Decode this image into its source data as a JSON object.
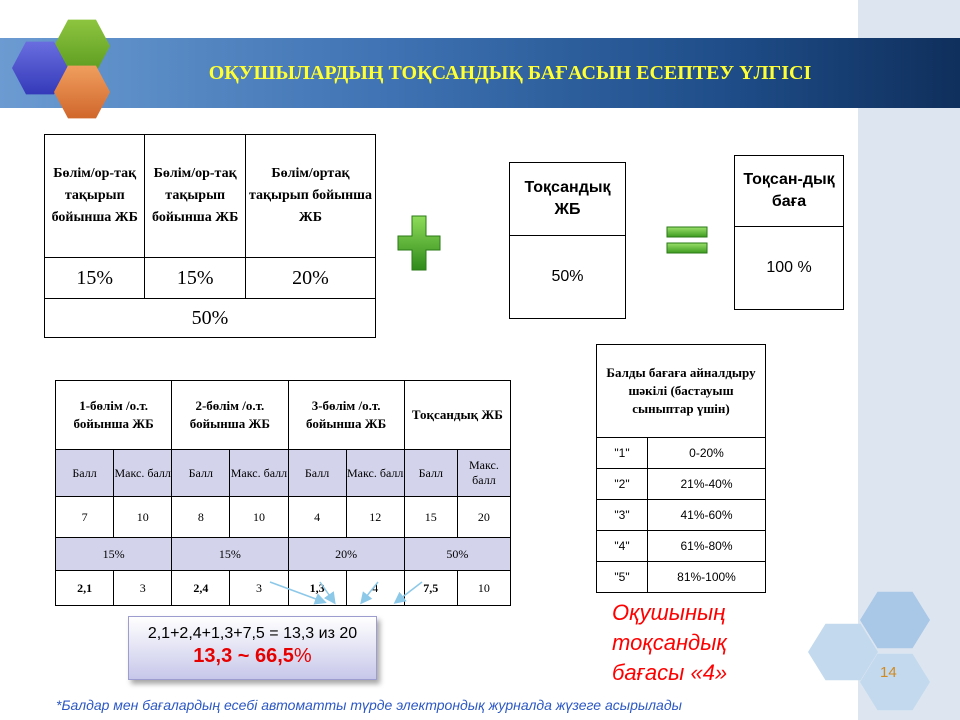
{
  "title": "ОҚУШЫЛАРДЫҢ ТОҚСАНДЫҚ БАҒАСЫН ЕСЕПТЕУ ҮЛГІСІ",
  "table1": {
    "headers": [
      "Бөлім/ор-тақ тақырып бойынша ЖБ",
      "Бөлім/ор-тақ тақырып бойынша ЖБ",
      "Бөлім/ортақ тақырып бойынша ЖБ"
    ],
    "percents": [
      "15%",
      "15%",
      "20%"
    ],
    "total": "50%"
  },
  "table2": {
    "header": "Тоқсандық ЖБ",
    "value": "50%"
  },
  "table3": {
    "header": "Тоқсан-дық баға",
    "value": "100 %"
  },
  "grade_table": {
    "headers": [
      "1-бөлім /о.т. бойынша ЖБ",
      "2-бөлім /о.т. бойынша ЖБ",
      "3-бөлім /о.т. бойынша ЖБ",
      "Тоқсандық ЖБ"
    ],
    "sub_ball": "Балл",
    "sub_max": "Макс. балл",
    "scores": [
      "7",
      "10",
      "8",
      "10",
      "4",
      "12",
      "15",
      "20"
    ],
    "weights": [
      "15%",
      "15%",
      "20%",
      "50%"
    ],
    "weighted": [
      "2,1",
      "3",
      "2,4",
      "3",
      "1,3",
      "4",
      "7,5",
      "10"
    ]
  },
  "scale_table": {
    "header": "Балды бағаға айналдыру шәкілі (бастауыш сыныптар үшін)",
    "rows": [
      {
        "grade": "\"1\"",
        "range": "0-20%"
      },
      {
        "grade": "\"2\"",
        "range": "21%-40%"
      },
      {
        "grade": "\"3\"",
        "range": "41%-60%"
      },
      {
        "grade": "\"4\"",
        "range": "61%-80%"
      },
      {
        "grade": "\"5\"",
        "range": "81%-100%"
      }
    ]
  },
  "formula": {
    "line1": "2,1+2,4+1,3+7,5 = 13,3 из 20",
    "line2_bold": "13,3 ~ 66,5",
    "line2_rest": "%"
  },
  "result": {
    "line1": "Оқушының",
    "line2": "тоқсандық",
    "line3": "бағасы «4»"
  },
  "page_number": "14",
  "footnote": "*Балдар мен бағалардың есебі автоматты түрде электрондық журналда жүзеге асырылады",
  "colors": {
    "title": "#ffff33",
    "plus": "#4caf2c",
    "equals": "#5cb82a",
    "accent_red": "#e60000"
  },
  "icons": [
    "plus-icon",
    "equals-icon",
    "hexagon-decor-icon",
    "arrow-icon"
  ]
}
